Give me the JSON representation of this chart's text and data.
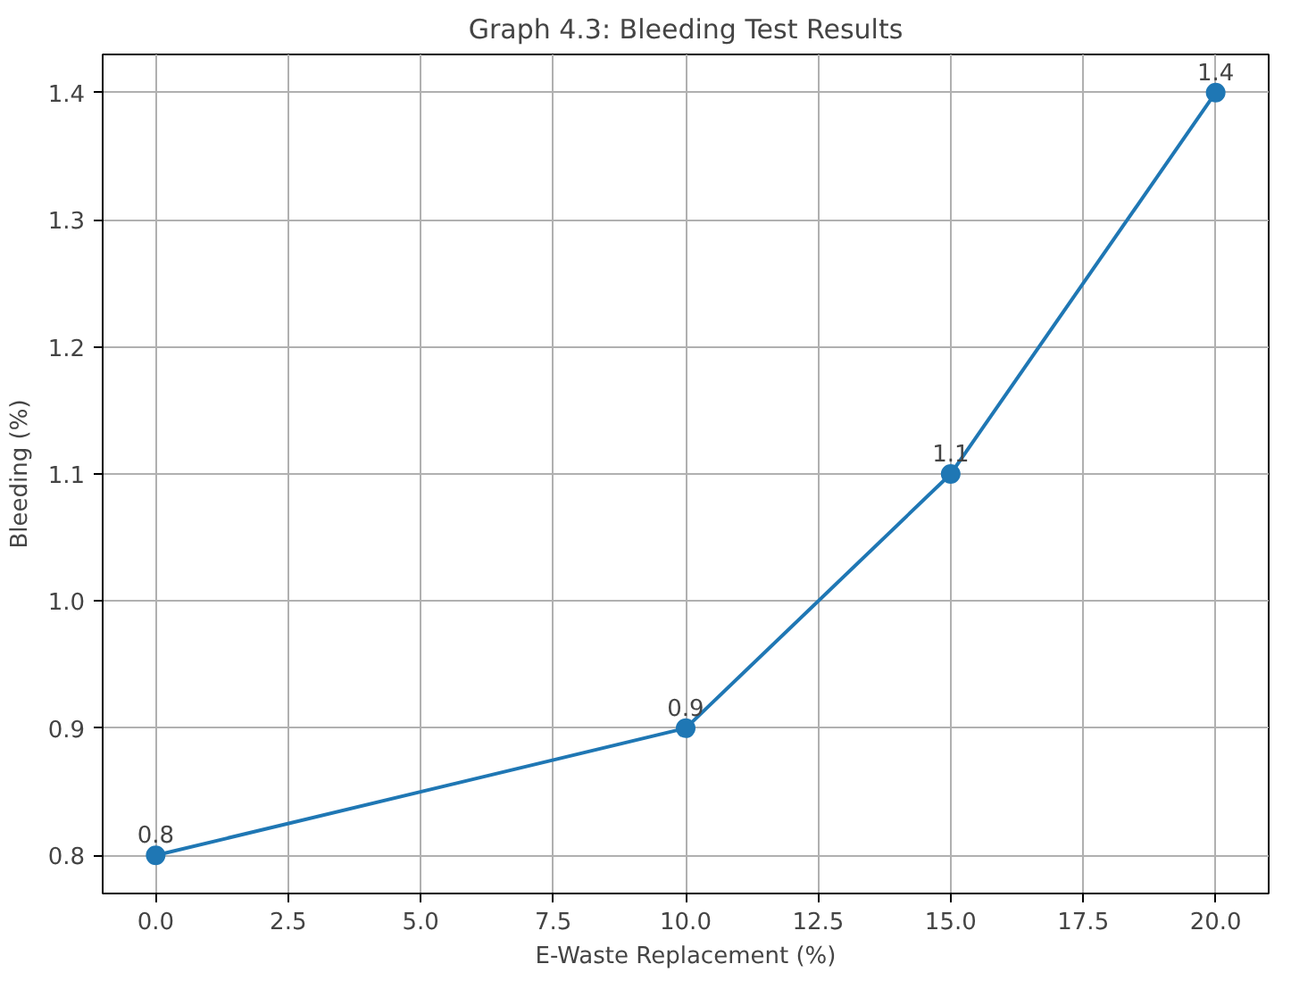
{
  "chart_data": {
    "type": "line",
    "title": "Graph 4.3: Bleeding Test Results",
    "xlabel": "E-Waste Replacement (%)",
    "ylabel": "Bleeding (%)",
    "x": [
      0,
      10,
      15,
      20
    ],
    "series": [
      {
        "color": "#1f77b4",
        "values": [
          0.8,
          0.9,
          1.1,
          1.4
        ]
      }
    ],
    "xlim": [
      -1,
      21
    ],
    "ylim": [
      0.77,
      1.43
    ],
    "xticks": [
      {
        "value": 0,
        "label": "0.0"
      },
      {
        "value": 2.5,
        "label": "2.5"
      },
      {
        "value": 5,
        "label": "5.0"
      },
      {
        "value": 7.5,
        "label": "7.5"
      },
      {
        "value": 10,
        "label": "10.0"
      },
      {
        "value": 12.5,
        "label": "12.5"
      },
      {
        "value": 15,
        "label": "15.0"
      },
      {
        "value": 17.5,
        "label": "17.5"
      },
      {
        "value": 20,
        "label": "20.0"
      }
    ],
    "yticks": [
      {
        "value": 0.8,
        "label": "0.8"
      },
      {
        "value": 0.9,
        "label": "0.9"
      },
      {
        "value": 1.0,
        "label": "1.0"
      },
      {
        "value": 1.1,
        "label": "1.1"
      },
      {
        "value": 1.2,
        "label": "1.2"
      },
      {
        "value": 1.3,
        "label": "1.3"
      },
      {
        "value": 1.4,
        "label": "1.4"
      }
    ],
    "grid": true,
    "marker": "circle",
    "line_style": "solid",
    "data_labels": true
  }
}
